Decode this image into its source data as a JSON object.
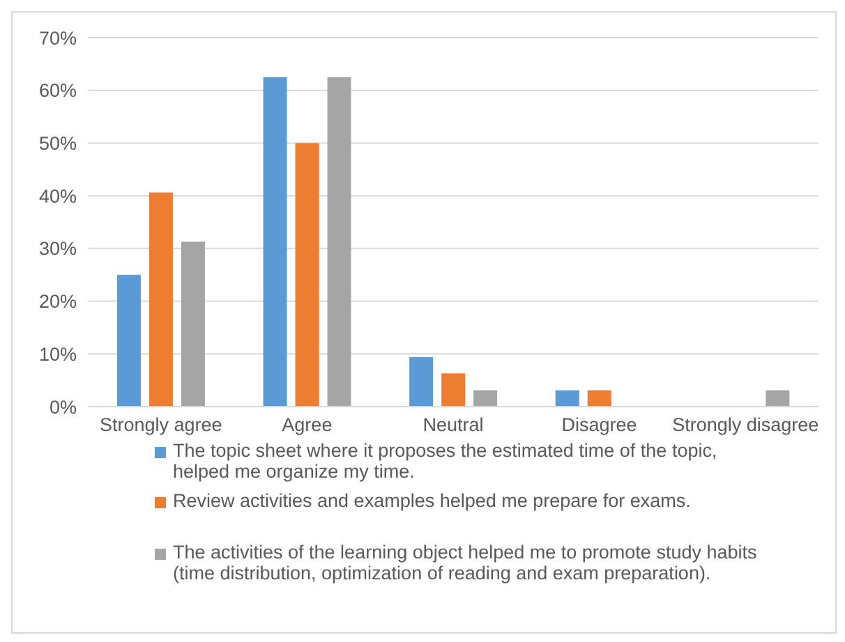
{
  "chart_data": {
    "type": "bar",
    "categories": [
      "Strongly agree",
      "Agree",
      "Neutral",
      "Disagree",
      "Strongly disagree"
    ],
    "series": [
      {
        "name": "The topic sheet where it proposes the estimated time of the topic, helped me organize my time.",
        "color": "#5b9bd5",
        "values": [
          25,
          62.5,
          9.4,
          3.1,
          0
        ]
      },
      {
        "name": "Review activities and examples helped me prepare for exams.",
        "color": "#ed7d31",
        "values": [
          40.6,
          50,
          6.3,
          3.1,
          0
        ]
      },
      {
        "name": "The activities of the learning object helped me to promote study habits (time distribution, optimization of reading and exam preparation).",
        "color": "#a5a5a5",
        "values": [
          31.3,
          62.5,
          3.1,
          0,
          3.1
        ]
      }
    ],
    "ylim": [
      0,
      70
    ],
    "yticks": [
      {
        "value": 0,
        "label": "0%"
      },
      {
        "value": 10,
        "label": "10%"
      },
      {
        "value": 20,
        "label": "20%"
      },
      {
        "value": 30,
        "label": "30%"
      },
      {
        "value": 40,
        "label": "40%"
      },
      {
        "value": 50,
        "label": "50%"
      },
      {
        "value": 60,
        "label": "60%"
      },
      {
        "value": 70,
        "label": "70%"
      }
    ],
    "grid": "y",
    "legend": "bottom"
  }
}
